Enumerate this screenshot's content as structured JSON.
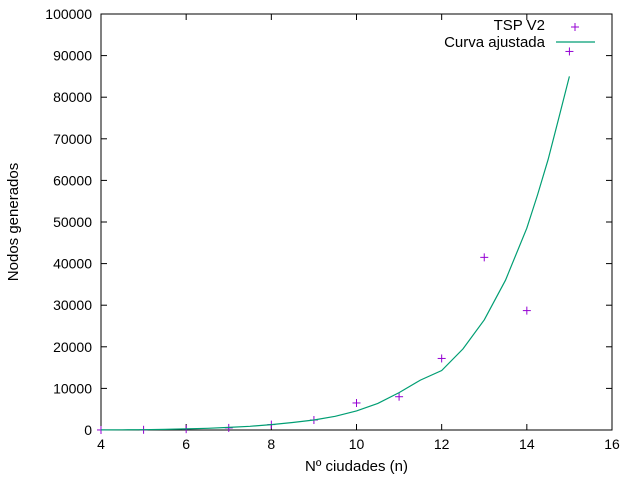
{
  "chart_data": {
    "type": "scatter",
    "title": "",
    "xlabel": "Nº ciudades (n)",
    "ylabel": "Nodos generados",
    "xlim": [
      4,
      16
    ],
    "ylim": [
      0,
      100000
    ],
    "xticks": [
      4,
      6,
      8,
      10,
      12,
      14,
      16
    ],
    "yticks": [
      0,
      10000,
      20000,
      30000,
      40000,
      50000,
      60000,
      70000,
      80000,
      90000,
      100000
    ],
    "grid": false,
    "legend_position": "top-right",
    "series": [
      {
        "name": "TSP V2",
        "style": "points",
        "marker": "plus",
        "color": "#9400d3",
        "x": [
          4,
          5,
          6,
          7,
          8,
          9,
          10,
          11,
          12,
          13,
          14,
          15
        ],
        "y": [
          10,
          50,
          200,
          500,
          1300,
          2400,
          6500,
          8000,
          17200,
          41500,
          28700,
          91000
        ]
      },
      {
        "name": "Curva ajustada",
        "style": "line",
        "color": "#009e73",
        "x": [
          4,
          4.5,
          5,
          5.5,
          6,
          6.5,
          7,
          7.5,
          8,
          8.5,
          9,
          9.5,
          10,
          10.5,
          11,
          11.5,
          12,
          12.5,
          13,
          13.5,
          14,
          14.25,
          14.5,
          14.75,
          15
        ],
        "y": [
          20,
          40,
          80,
          150,
          260,
          420,
          620,
          900,
          1300,
          1800,
          2400,
          3300,
          4600,
          6400,
          9000,
          12000,
          14300,
          19500,
          26500,
          36000,
          48500,
          56500,
          65000,
          75000,
          85000
        ]
      }
    ]
  }
}
